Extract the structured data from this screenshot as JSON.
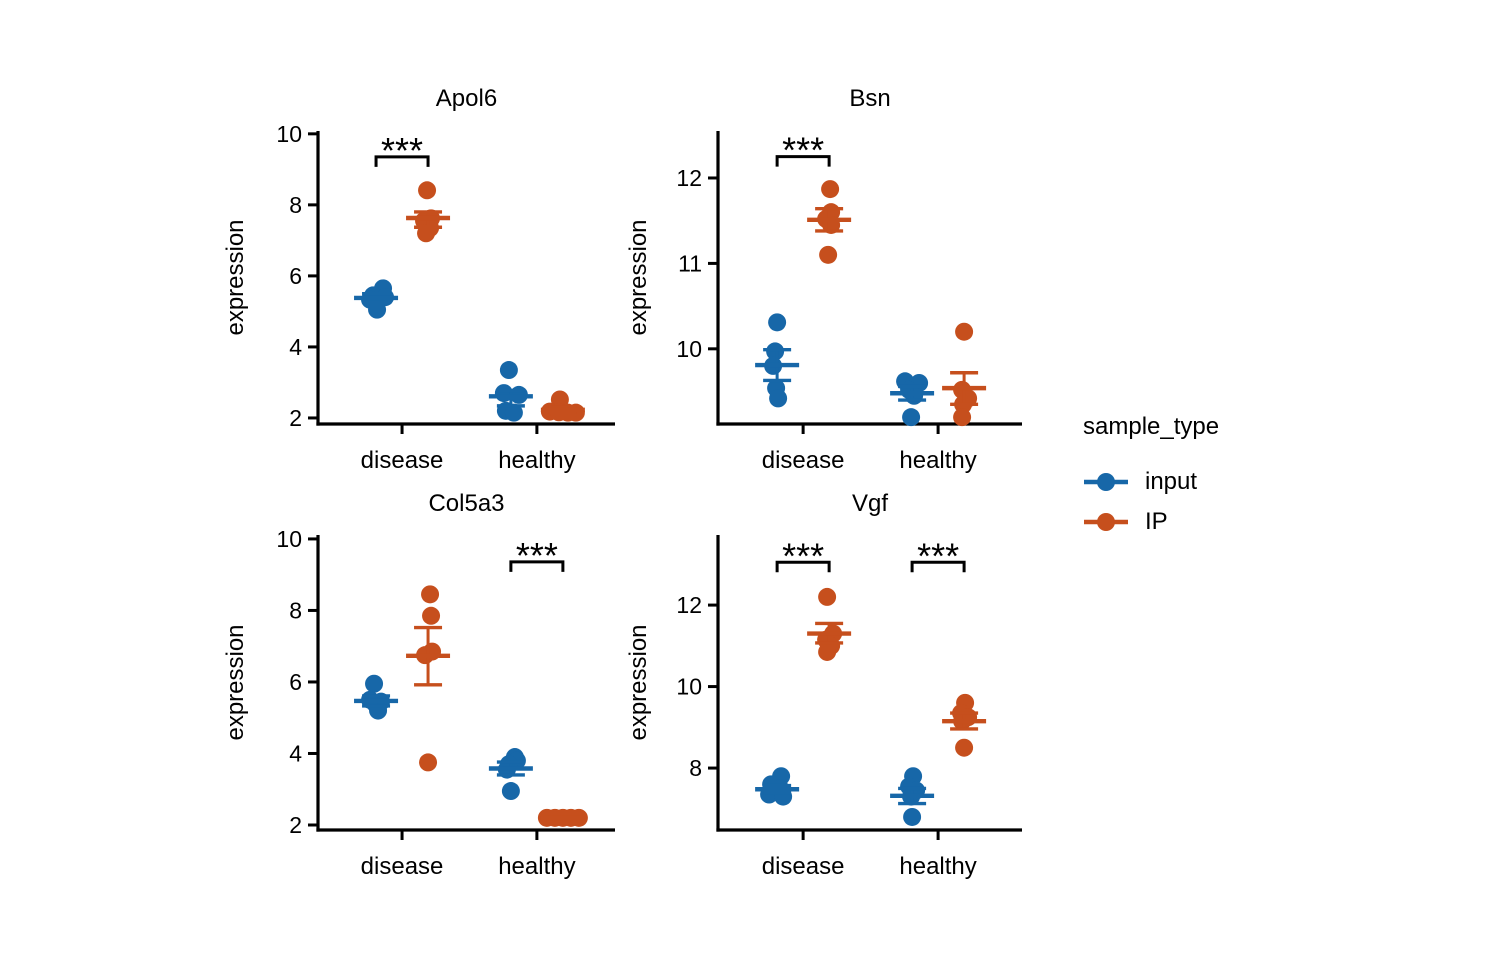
{
  "legend": {
    "title": "sample_type",
    "entries": [
      {
        "label": "input",
        "key": "input"
      },
      {
        "label": "IP",
        "key": "ip"
      }
    ]
  },
  "colors": {
    "input": "#1767A8",
    "ip": "#C64F1D",
    "axis": "#000000",
    "background": "#FFFFFF"
  },
  "chart_data": [
    {
      "type": "scatter",
      "title": "Apol6",
      "ylabel": "expression",
      "xlabel": "",
      "categories": [
        "disease",
        "healthy"
      ],
      "yticks": [
        2,
        4,
        6,
        8,
        10
      ],
      "ylim": [
        1.83,
        10.08
      ],
      "grid": false,
      "legend_position": "right-of-figure",
      "groups": [
        {
          "category": "disease",
          "sample_type": "input",
          "points": [
            [
              5.65,
              7
            ],
            [
              5.45,
              -3
            ],
            [
              5.4,
              9
            ],
            [
              5.33,
              -6
            ],
            [
              5.05,
              1
            ]
          ],
          "mean": 5.38,
          "se_low": 5.27,
          "se_high": 5.5
        },
        {
          "category": "disease",
          "sample_type": "IP",
          "points": [
            [
              8.41,
              -1
            ],
            [
              7.62,
              3
            ],
            [
              7.55,
              -4
            ],
            [
              7.35,
              2
            ],
            [
              7.2,
              -2
            ]
          ],
          "mean": 7.63,
          "se_low": 7.37,
          "se_high": 7.8
        },
        {
          "category": "healthy",
          "sample_type": "input",
          "points": [
            [
              3.35,
              -2
            ],
            [
              2.7,
              -7
            ],
            [
              2.65,
              8
            ],
            [
              2.2,
              -5
            ],
            [
              2.15,
              3
            ]
          ],
          "mean": 2.61,
          "se_low": 2.34,
          "se_high": 2.77
        },
        {
          "category": "healthy",
          "sample_type": "IP",
          "points": [
            [
              2.52,
              -3
            ],
            [
              2.18,
              -13
            ],
            [
              2.16,
              -4
            ],
            [
              2.15,
              5
            ],
            [
              2.15,
              13
            ]
          ],
          "mean": 2.23,
          "se_low": 2.16,
          "se_high": 2.31
        }
      ],
      "significance": [
        {
          "category": "disease",
          "label": "***",
          "y": 9.35
        }
      ]
    },
    {
      "type": "scatter",
      "title": "Bsn",
      "ylabel": "expression",
      "xlabel": "",
      "categories": [
        "disease",
        "healthy"
      ],
      "yticks": [
        10,
        11,
        12
      ],
      "ylim": [
        9.12,
        12.55
      ],
      "grid": false,
      "groups": [
        {
          "category": "disease",
          "sample_type": "input",
          "points": [
            [
              10.31,
              0
            ],
            [
              9.97,
              -2
            ],
            [
              9.8,
              -4
            ],
            [
              9.54,
              -1
            ],
            [
              9.42,
              1
            ]
          ],
          "mean": 9.81,
          "se_low": 9.63,
          "se_high": 9.99
        },
        {
          "category": "disease",
          "sample_type": "IP",
          "points": [
            [
              11.87,
              1
            ],
            [
              11.6,
              2
            ],
            [
              11.52,
              -3
            ],
            [
              11.45,
              2
            ],
            [
              11.1,
              -1
            ]
          ],
          "mean": 11.51,
          "se_low": 11.38,
          "se_high": 11.64
        },
        {
          "category": "healthy",
          "sample_type": "input",
          "points": [
            [
              9.62,
              -7
            ],
            [
              9.6,
              7
            ],
            [
              9.52,
              -3
            ],
            [
              9.45,
              2
            ],
            [
              9.2,
              -1
            ]
          ],
          "mean": 9.48,
          "se_low": 9.4,
          "se_high": 9.56
        },
        {
          "category": "healthy",
          "sample_type": "IP",
          "points": [
            [
              10.2,
              0
            ],
            [
              9.52,
              -2
            ],
            [
              9.42,
              4
            ],
            [
              9.35,
              -1
            ],
            [
              9.2,
              -2
            ]
          ],
          "mean": 9.54,
          "se_low": 9.35,
          "se_high": 9.72
        }
      ],
      "significance": [
        {
          "category": "disease",
          "label": "***",
          "y": 12.25
        }
      ]
    },
    {
      "type": "scatter",
      "title": "Col5a3",
      "ylabel": "expression",
      "xlabel": "",
      "categories": [
        "disease",
        "healthy"
      ],
      "yticks": [
        2,
        4,
        6,
        8,
        10
      ],
      "ylim": [
        1.86,
        10.11
      ],
      "grid": false,
      "groups": [
        {
          "category": "disease",
          "sample_type": "input",
          "points": [
            [
              5.95,
              -2
            ],
            [
              5.5,
              -6
            ],
            [
              5.45,
              5
            ],
            [
              5.4,
              -1
            ],
            [
              5.2,
              2
            ]
          ],
          "mean": 5.47,
          "se_low": 5.33,
          "se_high": 5.61
        },
        {
          "category": "disease",
          "sample_type": "IP",
          "points": [
            [
              8.45,
              2
            ],
            [
              7.85,
              3
            ],
            [
              6.85,
              4
            ],
            [
              6.75,
              -3
            ],
            [
              3.75,
              0
            ]
          ],
          "mean": 6.73,
          "se_low": 5.92,
          "se_high": 7.52
        },
        {
          "category": "healthy",
          "sample_type": "input",
          "points": [
            [
              3.9,
              4
            ],
            [
              3.8,
              6
            ],
            [
              3.7,
              -2
            ],
            [
              3.55,
              -4
            ],
            [
              2.95,
              0
            ]
          ],
          "mean": 3.58,
          "se_low": 3.4,
          "se_high": 3.76
        },
        {
          "category": "healthy",
          "sample_type": "IP",
          "points": [
            [
              2.2,
              -16
            ],
            [
              2.2,
              -8
            ],
            [
              2.2,
              0
            ],
            [
              2.2,
              8
            ],
            [
              2.2,
              16
            ]
          ],
          "mean": 2.2,
          "se_low": 2.17,
          "se_high": 2.23
        }
      ],
      "significance": [
        {
          "category": "healthy",
          "label": "***",
          "y": 9.36
        }
      ]
    },
    {
      "type": "scatter",
      "title": "Vgf",
      "ylabel": "expression",
      "xlabel": "",
      "categories": [
        "disease",
        "healthy"
      ],
      "yticks": [
        8,
        10,
        12
      ],
      "ylim": [
        6.48,
        13.72
      ],
      "grid": false,
      "groups": [
        {
          "category": "disease",
          "sample_type": "input",
          "points": [
            [
              7.8,
              4
            ],
            [
              7.6,
              -6
            ],
            [
              7.5,
              3
            ],
            [
              7.35,
              -8
            ],
            [
              7.3,
              6
            ]
          ],
          "mean": 7.48,
          "se_low": 7.39,
          "se_high": 7.57
        },
        {
          "category": "disease",
          "sample_type": "IP",
          "points": [
            [
              12.2,
              -2
            ],
            [
              11.3,
              4
            ],
            [
              11.15,
              -3
            ],
            [
              11.0,
              2
            ],
            [
              10.85,
              -2
            ]
          ],
          "mean": 11.3,
          "se_low": 11.07,
          "se_high": 11.55
        },
        {
          "category": "healthy",
          "sample_type": "input",
          "points": [
            [
              7.8,
              1
            ],
            [
              7.55,
              -3
            ],
            [
              7.45,
              4
            ],
            [
              7.3,
              -1
            ],
            [
              6.8,
              0
            ]
          ],
          "mean": 7.32,
          "se_low": 7.13,
          "se_high": 7.5
        },
        {
          "category": "healthy",
          "sample_type": "IP",
          "points": [
            [
              9.6,
              1
            ],
            [
              9.35,
              -3
            ],
            [
              9.25,
              4
            ],
            [
              9.15,
              -2
            ],
            [
              8.5,
              0
            ]
          ],
          "mean": 9.15,
          "se_low": 8.96,
          "se_high": 9.35
        }
      ],
      "significance": [
        {
          "category": "disease",
          "label": "***",
          "y": 13.05
        },
        {
          "category": "healthy",
          "label": "***",
          "y": 13.05
        }
      ]
    }
  ]
}
